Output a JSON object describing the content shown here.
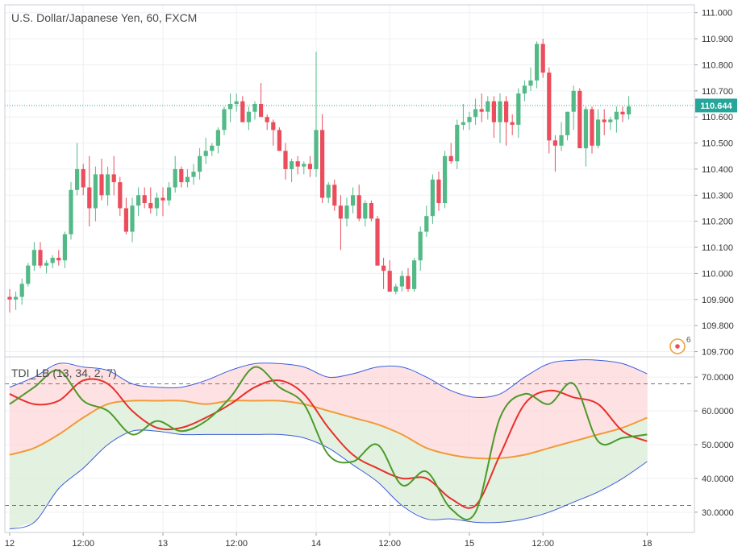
{
  "chart_data": [
    {
      "type": "candlestick",
      "title": "U.S. Dollar/Japanese Yen, 60, FXCM",
      "y_ticks": [
        "111.000",
        "110.900",
        "110.800",
        "110.700",
        "110.600",
        "110.500",
        "110.400",
        "110.300",
        "110.200",
        "110.100",
        "110.000",
        "109.900",
        "109.800",
        "109.700"
      ],
      "ylim": [
        109.68,
        111.03
      ],
      "last_price": 110.644,
      "last_price_label": "110.644",
      "alert_badge": "6",
      "colors": {
        "up": "#53b987",
        "down": "#eb4d5c",
        "price_line": "#26a69a",
        "grid": "#eef0f3"
      },
      "candles": [
        [
          109.91,
          109.94,
          109.85,
          109.9
        ],
        [
          109.9,
          109.93,
          109.86,
          109.91
        ],
        [
          109.91,
          109.98,
          109.88,
          109.96
        ],
        [
          109.96,
          110.04,
          109.95,
          110.03
        ],
        [
          110.03,
          110.12,
          110.01,
          110.09
        ],
        [
          110.09,
          110.12,
          110.02,
          110.03
        ],
        [
          110.03,
          110.05,
          110.0,
          110.04
        ],
        [
          110.04,
          110.07,
          110.02,
          110.06
        ],
        [
          110.06,
          110.09,
          110.03,
          110.05
        ],
        [
          110.05,
          110.16,
          110.02,
          110.15
        ],
        [
          110.15,
          110.35,
          110.13,
          110.32
        ],
        [
          110.32,
          110.5,
          110.3,
          110.4
        ],
        [
          110.4,
          110.42,
          110.3,
          110.33
        ],
        [
          110.33,
          110.45,
          110.18,
          110.25
        ],
        [
          110.25,
          110.41,
          110.2,
          110.38
        ],
        [
          110.38,
          110.44,
          110.28,
          110.3
        ],
        [
          110.3,
          110.41,
          110.26,
          110.38
        ],
        [
          110.38,
          110.45,
          110.3,
          110.35
        ],
        [
          110.35,
          110.37,
          110.22,
          110.25
        ],
        [
          110.25,
          110.29,
          110.15,
          110.16
        ],
        [
          110.16,
          110.29,
          110.12,
          110.26
        ],
        [
          110.26,
          110.33,
          110.22,
          110.3
        ],
        [
          110.3,
          110.33,
          110.25,
          110.27
        ],
        [
          110.27,
          110.33,
          110.23,
          110.25
        ],
        [
          110.25,
          110.31,
          110.22,
          110.29
        ],
        [
          110.29,
          110.33,
          110.22,
          110.28
        ],
        [
          110.28,
          110.35,
          110.26,
          110.33
        ],
        [
          110.33,
          110.45,
          110.31,
          110.4
        ],
        [
          110.4,
          110.41,
          110.33,
          110.35
        ],
        [
          110.35,
          110.4,
          110.33,
          110.37
        ],
        [
          110.37,
          110.42,
          110.34,
          110.39
        ],
        [
          110.39,
          110.48,
          110.36,
          110.45
        ],
        [
          110.45,
          110.52,
          110.42,
          110.47
        ],
        [
          110.47,
          110.5,
          110.45,
          110.49
        ],
        [
          110.49,
          110.56,
          110.46,
          110.55
        ],
        [
          110.55,
          110.64,
          110.53,
          110.63
        ],
        [
          110.63,
          110.69,
          110.58,
          110.65
        ],
        [
          110.65,
          110.69,
          110.62,
          110.66
        ],
        [
          110.66,
          110.68,
          110.58,
          110.58
        ],
        [
          110.58,
          110.64,
          110.55,
          110.62
        ],
        [
          110.62,
          110.66,
          110.59,
          110.65
        ],
        [
          110.65,
          110.73,
          110.6,
          110.6
        ],
        [
          110.6,
          110.61,
          110.55,
          110.58
        ],
        [
          110.58,
          110.59,
          110.49,
          110.55
        ],
        [
          110.55,
          110.56,
          110.47,
          110.47
        ],
        [
          110.47,
          110.5,
          110.36,
          110.4
        ],
        [
          110.4,
          110.44,
          110.35,
          110.43
        ],
        [
          110.43,
          110.45,
          110.38,
          110.41
        ],
        [
          110.41,
          110.43,
          110.38,
          110.42
        ],
        [
          110.42,
          110.45,
          110.37,
          110.4
        ],
        [
          110.4,
          110.85,
          110.37,
          110.55
        ],
        [
          110.55,
          110.61,
          110.27,
          110.29
        ],
        [
          110.29,
          110.35,
          110.27,
          110.34
        ],
        [
          110.34,
          110.36,
          110.24,
          110.26
        ],
        [
          110.26,
          110.3,
          110.09,
          110.21
        ],
        [
          110.21,
          110.29,
          110.18,
          110.26
        ],
        [
          110.26,
          110.33,
          110.23,
          110.3
        ],
        [
          110.3,
          110.34,
          110.2,
          110.21
        ],
        [
          110.21,
          110.28,
          110.18,
          110.27
        ],
        [
          110.27,
          110.28,
          110.2,
          110.21
        ],
        [
          110.21,
          110.22,
          110.03,
          110.03
        ],
        [
          110.03,
          110.06,
          109.94,
          110.01
        ],
        [
          110.01,
          110.05,
          109.93,
          109.93
        ],
        [
          109.93,
          109.96,
          109.92,
          109.95
        ],
        [
          109.95,
          110.01,
          109.93,
          109.99
        ],
        [
          109.99,
          110.02,
          109.93,
          109.94
        ],
        [
          109.94,
          110.06,
          109.93,
          110.05
        ],
        [
          110.05,
          110.18,
          110.01,
          110.16
        ],
        [
          110.16,
          110.26,
          110.14,
          110.22
        ],
        [
          110.22,
          110.38,
          110.19,
          110.36
        ],
        [
          110.36,
          110.39,
          110.24,
          110.27
        ],
        [
          110.27,
          110.47,
          110.25,
          110.45
        ],
        [
          110.45,
          110.5,
          110.42,
          110.43
        ],
        [
          110.43,
          110.59,
          110.4,
          110.57
        ],
        [
          110.57,
          110.65,
          110.55,
          110.58
        ],
        [
          110.58,
          110.62,
          110.55,
          110.6
        ],
        [
          110.6,
          110.67,
          110.57,
          110.63
        ],
        [
          110.63,
          110.69,
          110.58,
          110.62
        ],
        [
          110.62,
          110.68,
          110.59,
          110.66
        ],
        [
          110.66,
          110.68,
          110.52,
          110.58
        ],
        [
          110.58,
          110.69,
          110.5,
          110.66
        ],
        [
          110.66,
          110.68,
          110.49,
          110.58
        ],
        [
          110.58,
          110.61,
          110.53,
          110.57
        ],
        [
          110.57,
          110.71,
          110.52,
          110.69
        ],
        [
          110.69,
          110.74,
          110.66,
          110.72
        ],
        [
          110.72,
          110.79,
          110.7,
          110.74
        ],
        [
          110.74,
          110.89,
          110.71,
          110.88
        ],
        [
          110.88,
          110.9,
          110.75,
          110.77
        ],
        [
          110.77,
          110.79,
          110.46,
          110.51
        ],
        [
          110.51,
          110.53,
          110.39,
          110.49
        ],
        [
          110.49,
          110.58,
          110.47,
          110.53
        ],
        [
          110.53,
          110.62,
          110.51,
          110.62
        ],
        [
          110.62,
          110.72,
          110.55,
          110.7
        ],
        [
          110.7,
          110.71,
          110.48,
          110.48
        ],
        [
          110.48,
          110.64,
          110.41,
          110.63
        ],
        [
          110.63,
          110.64,
          110.46,
          110.49
        ],
        [
          110.49,
          110.63,
          110.48,
          110.59
        ],
        [
          110.59,
          110.63,
          110.53,
          110.58
        ],
        [
          110.58,
          110.6,
          110.55,
          110.59
        ],
        [
          110.59,
          110.64,
          110.54,
          110.62
        ],
        [
          110.62,
          110.64,
          110.58,
          110.61
        ],
        [
          110.61,
          110.68,
          110.59,
          110.64
        ]
      ]
    },
    {
      "type": "line",
      "title": "TDI_LB (13, 34, 2, 7)",
      "y_ticks": [
        "70.0000",
        "60.0000",
        "50.0000",
        "40.0000",
        "30.0000"
      ],
      "ylim": [
        24,
        76
      ],
      "levels": [
        68,
        32
      ],
      "x_ticks": [
        {
          "label": "12",
          "x": 0
        },
        {
          "label": "12:00",
          "x": 12
        },
        {
          "label": "13",
          "x": 25
        },
        {
          "label": "12:00",
          "x": 37
        },
        {
          "label": "14",
          "x": 50
        },
        {
          "label": "12:00",
          "x": 62
        },
        {
          "label": "15",
          "x": 75
        },
        {
          "label": "12:00",
          "x": 87
        },
        {
          "label": "18",
          "x": 104
        }
      ],
      "colors": {
        "green": "#4c9a2a",
        "red": "#e8302a",
        "orange": "#f29a38",
        "blue": "#3b5bdb",
        "upper_fill": "#fdd7da",
        "lower_fill": "#dcedd8"
      },
      "x": [
        0,
        4,
        8,
        12,
        16,
        20,
        24,
        28,
        32,
        36,
        40,
        44,
        48,
        52,
        56,
        60,
        64,
        68,
        72,
        76,
        80,
        84,
        88,
        92,
        96,
        100,
        104
      ],
      "series": [
        {
          "name": "upper",
          "values": [
            67,
            70,
            74,
            73,
            72,
            68,
            67,
            67,
            69,
            72,
            74,
            74,
            73,
            70,
            71,
            73,
            73,
            70,
            66,
            64,
            65,
            70,
            74,
            75,
            75,
            74,
            71
          ]
        },
        {
          "name": "lower",
          "values": [
            25,
            27,
            37,
            43,
            50,
            54,
            54,
            53,
            53,
            53,
            53,
            53,
            52,
            49,
            44,
            39,
            32,
            28,
            28,
            27,
            27,
            28,
            30,
            33,
            36,
            40,
            45
          ]
        },
        {
          "name": "mid",
          "values": [
            47,
            49,
            53,
            58,
            62,
            63,
            63,
            63,
            62,
            63,
            63,
            63,
            62,
            60,
            58,
            56,
            53,
            49,
            47,
            46,
            46,
            47,
            49,
            51,
            53,
            55,
            58
          ]
        },
        {
          "name": "red",
          "values": [
            65,
            62,
            63,
            69,
            68,
            60,
            55,
            55,
            58,
            62,
            67,
            69,
            65,
            55,
            47,
            43,
            40,
            40,
            34,
            32,
            47,
            62,
            66,
            64,
            62,
            54,
            51
          ]
        },
        {
          "name": "green",
          "values": [
            62,
            67,
            72,
            63,
            60,
            53,
            57,
            54,
            57,
            64,
            73,
            67,
            62,
            47,
            45,
            50,
            38,
            42,
            31,
            30,
            58,
            65,
            62,
            68,
            51,
            52,
            53
          ]
        }
      ]
    }
  ]
}
